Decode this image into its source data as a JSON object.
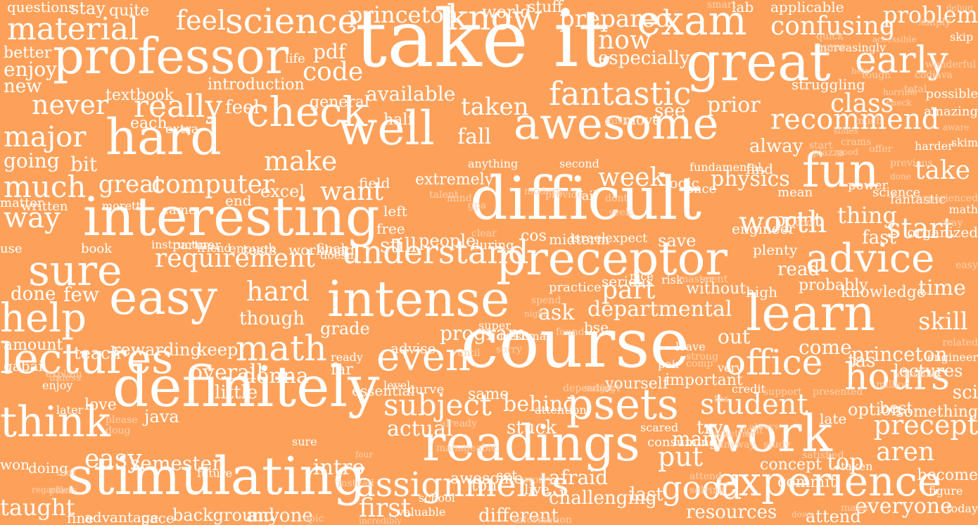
{
  "background_color": "#fda15a",
  "text_color": "#ffffff",
  "words": [
    "take it",
    "course",
    "difficult",
    "definitely",
    "interesting",
    "stimulating",
    "great",
    "professor",
    "awesome",
    "hard",
    "well",
    "check",
    "easy",
    "intense",
    "preceptor",
    "work",
    "readings",
    "learn",
    "experience",
    "psets",
    "lectures",
    "fun",
    "exam",
    "advice",
    "sure",
    "even",
    "help",
    "think",
    "early",
    "assignments",
    "know",
    "understand",
    "office",
    "hours",
    "math",
    "science",
    "material",
    "fantastic",
    "recommend",
    "really",
    "major",
    "much",
    "way",
    "worth",
    "student",
    "subject",
    "start",
    "thing",
    "good",
    "first",
    "put",
    "try",
    "precept",
    "take",
    "class",
    "confusing",
    "problem",
    "prepared",
    "princeton",
    "feel",
    "quite",
    "stay",
    "questions",
    "world",
    "stuff",
    "applicable",
    "smart",
    "lab",
    "now",
    "code",
    "especially",
    "introduction",
    "textbook",
    "never",
    "enjoy",
    "better",
    "new",
    "pdf",
    "life",
    "available",
    "general",
    "half",
    "taken",
    "fall",
    "prior",
    "struggling",
    "amazing",
    "possible",
    "make",
    "want",
    "computer",
    "great",
    "week",
    "alway",
    "physics",
    "point",
    "bit",
    "going",
    "extremely",
    "anything",
    "second",
    "requirement",
    "people",
    "still",
    "hard",
    "few",
    "done",
    "ask",
    "departmental",
    "tas",
    "knowledge",
    "time",
    "probably",
    "skill",
    "without",
    "high",
    "part",
    "practice",
    "though",
    "program",
    "bse",
    "out",
    "come",
    "princeton",
    "lectures",
    "fast",
    "organized",
    "rewarding",
    "teach",
    "amount",
    "keep",
    "overall",
    "donna",
    "little",
    "far",
    "advise",
    "ton",
    "live",
    "important",
    "many",
    "late",
    "option",
    "best",
    "behind",
    "actual",
    "stuck",
    "java",
    "love",
    "semester",
    "future",
    "easy",
    "doing",
    "won",
    "taught",
    "intro",
    "awesome",
    "set",
    "different",
    "challenging",
    "afraid",
    "last",
    "anyone",
    "background",
    "advantage",
    "fine",
    "pace",
    "resources",
    "everyone",
    "top",
    "concept",
    "become",
    "attend",
    "commit",
    "aren",
    "yourself",
    "something",
    "sci",
    "read",
    "essential",
    "grade",
    "level",
    "same",
    "curve",
    "during",
    "cos",
    "midterm",
    "israel",
    "expect",
    "save",
    "plenty",
    "see",
    "move",
    "miss",
    "feel",
    "each",
    "extra",
    "left",
    "free",
    "field",
    "excel",
    "end",
    "came",
    "moretti",
    "written",
    "matter",
    "use",
    "book",
    "instructors",
    "partner",
    "friend",
    "enough",
    "tests",
    "workload",
    "final",
    "doesn",
    "serious",
    "nice",
    "risk",
    "master",
    "spent",
    "logic",
    "fundamental",
    "engineer",
    "mean",
    "find",
    "once",
    "fail",
    "dont",
    "seek",
    "gpa",
    "clear",
    "mind",
    "talent",
    "modern",
    "provide",
    "cool",
    "power",
    "science",
    "fantastic",
    "experienced",
    "math",
    "way",
    "easy",
    "skim",
    "related",
    "engineer",
    "gabai",
    "unless",
    "explain",
    "enjoy",
    "later",
    "please",
    "doug",
    "tool",
    "plan",
    "regardless",
    "topic",
    "incredibly",
    "information",
    "valuable",
    "school",
    "worry",
    "instead",
    "four",
    "sure",
    "manageable",
    "already",
    "ready",
    "until",
    "super",
    "freshman",
    "sorry",
    "found",
    "night",
    "spend",
    "attention",
    "depending",
    "subject",
    "scared",
    "consuming",
    "pair",
    "leave",
    "strong",
    "comp",
    "very",
    "tas",
    "credit",
    "support",
    "presented",
    "million",
    "carefully",
    "taken",
    "satisfied",
    "study",
    "right",
    "whether",
    "always",
    "anyway",
    "attend",
    "solving",
    "down",
    "major",
    "figure",
    "today",
    "wonderful",
    "skip",
    "debug",
    "simply",
    "accessible",
    "increasingly",
    "quick",
    "over",
    "tough",
    "help",
    "check",
    "total",
    "horrible",
    "much",
    "slides",
    "good",
    "offer",
    "crams",
    "start",
    "piazza",
    "previous",
    "done",
    "harder",
    "aware",
    "java",
    "code",
    "exposure",
    "interested",
    "mata",
    "heavy"
  ]
}
